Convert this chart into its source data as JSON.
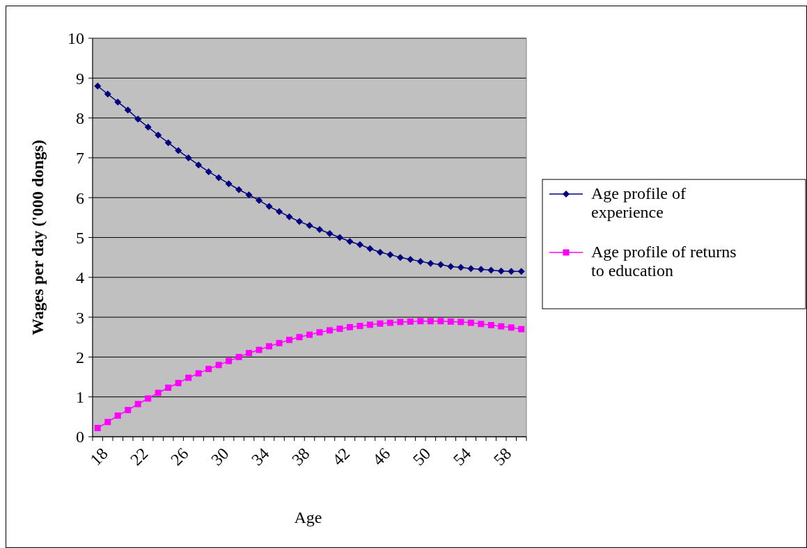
{
  "chart_data": {
    "type": "line",
    "xlabel": "Age",
    "ylabel": "Wages per day ('000 dongs)",
    "categories": [
      "18",
      null,
      null,
      null,
      "22",
      null,
      null,
      null,
      "26",
      null,
      null,
      null,
      "30",
      null,
      null,
      null,
      "34",
      null,
      null,
      null,
      "38",
      null,
      null,
      null,
      "42",
      null,
      null,
      null,
      "46",
      null,
      null,
      null,
      "50",
      null,
      null,
      null,
      "54",
      null,
      null,
      null,
      "58",
      null,
      null
    ],
    "series": [
      {
        "name": "Age profile of experience",
        "color": "#000080",
        "marker": "diamond",
        "values": [
          8.8,
          8.6,
          8.4,
          8.2,
          7.97,
          7.77,
          7.57,
          7.38,
          7.18,
          7.0,
          6.82,
          6.65,
          6.5,
          6.35,
          6.2,
          6.07,
          5.93,
          5.78,
          5.65,
          5.52,
          5.4,
          5.3,
          5.2,
          5.1,
          5.0,
          4.9,
          4.82,
          4.72,
          4.63,
          4.57,
          4.5,
          4.45,
          4.4,
          4.35,
          4.32,
          4.27,
          4.25,
          4.22,
          4.2,
          4.18,
          4.16,
          4.15,
          4.15
        ]
      },
      {
        "name": "Age profile of returns to education",
        "color": "#ff00ff",
        "marker": "square",
        "values": [
          0.22,
          0.37,
          0.53,
          0.67,
          0.82,
          0.96,
          1.1,
          1.23,
          1.35,
          1.48,
          1.59,
          1.7,
          1.8,
          1.9,
          2.0,
          2.1,
          2.18,
          2.27,
          2.35,
          2.43,
          2.5,
          2.56,
          2.62,
          2.67,
          2.71,
          2.75,
          2.78,
          2.81,
          2.84,
          2.86,
          2.88,
          2.89,
          2.9,
          2.9,
          2.9,
          2.89,
          2.88,
          2.86,
          2.83,
          2.8,
          2.77,
          2.74,
          2.7
        ]
      }
    ],
    "ylim": [
      0,
      10
    ],
    "yticks": [
      0,
      1,
      2,
      3,
      4,
      5,
      6,
      7,
      8,
      9,
      10
    ],
    "grid": "y",
    "legend": "right",
    "line_style": "solid"
  }
}
